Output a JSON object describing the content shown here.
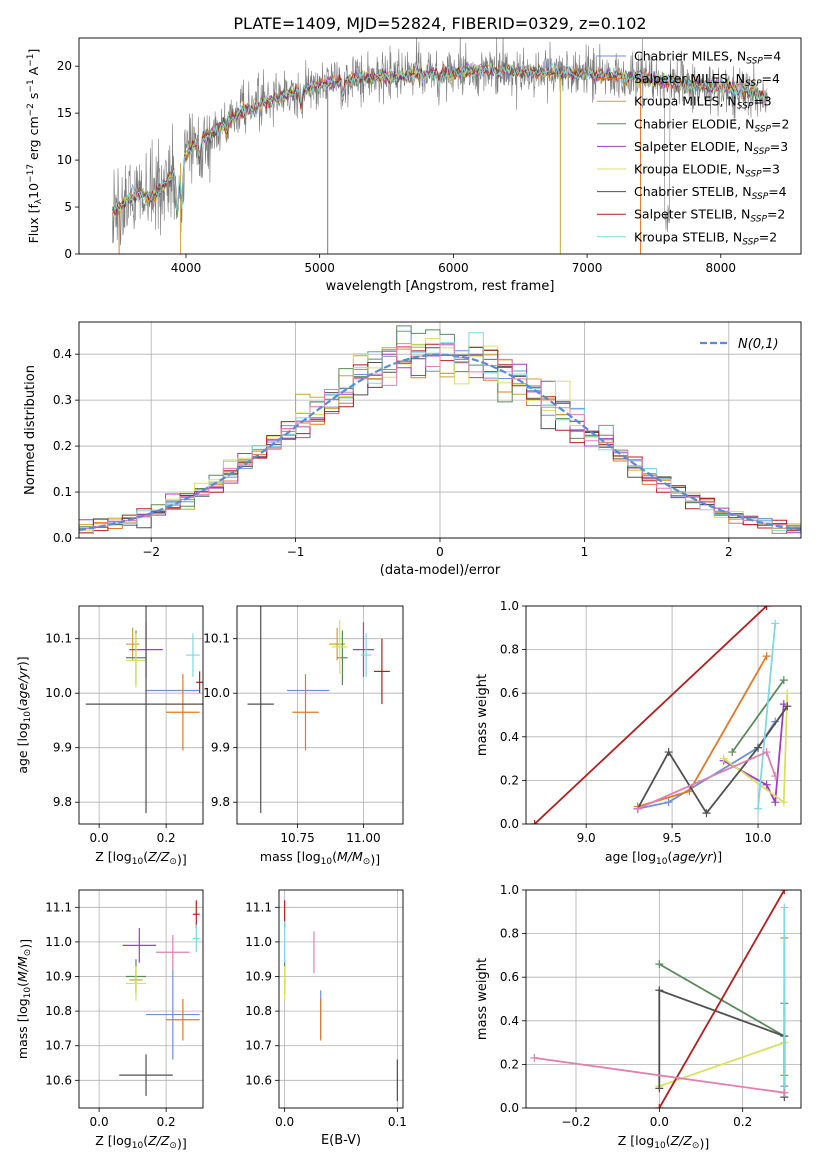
{
  "figure_title": "PLATE=1409, MJD=52824, FIBERID=0329, z=0.102",
  "models": [
    {
      "name": "Chabrier MILES, N",
      "sub": "SSP",
      "suffix": "=4",
      "color": "#6f8fd8"
    },
    {
      "name": "Salpeter MILES, N",
      "sub": "SSP",
      "suffix": "=4",
      "color": "#e07a2a"
    },
    {
      "name": "Kroupa MILES, N",
      "sub": "SSP",
      "suffix": "=3",
      "color": "#c9a23a"
    },
    {
      "name": "Chabrier ELODIE, N",
      "sub": "SSP",
      "suffix": "=2",
      "color": "#5a8a5a"
    },
    {
      "name": "Salpeter ELODIE, N",
      "sub": "SSP",
      "suffix": "=3",
      "color": "#a040c0"
    },
    {
      "name": "Kroupa ELODIE, N",
      "sub": "SSP",
      "suffix": "=3",
      "color": "#d8e060"
    },
    {
      "name": "Chabrier STELIB, N",
      "sub": "SSP",
      "suffix": "=4",
      "color": "#505050"
    },
    {
      "name": "Salpeter STELIB, N",
      "sub": "SSP",
      "suffix": "=2",
      "color": "#b02020"
    },
    {
      "name": "Kroupa STELIB, N",
      "sub": "SSP",
      "suffix": "=2",
      "color": "#80d8e0"
    }
  ],
  "chart_data": [
    {
      "id": "spectrum",
      "type": "line",
      "xlabel": "wavelength [Angstrom, rest frame]",
      "ylabel_parts": [
        "Flux [f",
        "λ",
        "10",
        "−17",
        " erg cm",
        "−2",
        " s",
        "−1",
        " A",
        "−1",
        "]"
      ],
      "xlim": [
        3200,
        8600
      ],
      "ylim": [
        0,
        23
      ],
      "xticks": [
        4000,
        5000,
        6000,
        7000,
        8000
      ],
      "yticks": [
        0,
        5,
        10,
        15,
        20
      ],
      "grid": false,
      "legend": "right",
      "continuum": {
        "x": [
          3450,
          3550,
          3650,
          3750,
          3850,
          3950,
          4050,
          4200,
          4400,
          4600,
          4800,
          5000,
          5200,
          5400,
          5600,
          5800,
          6000,
          6200,
          6400,
          6600,
          6800,
          7000,
          7200,
          7400,
          7600,
          7800,
          8000,
          8200,
          8350
        ],
        "y": [
          4.5,
          5.5,
          6.5,
          6.0,
          7.5,
          9.5,
          11.5,
          13.0,
          15.0,
          16.2,
          17.2,
          18.0,
          18.6,
          18.8,
          19.0,
          19.2,
          19.3,
          19.5,
          19.5,
          19.4,
          19.3,
          19.2,
          19.0,
          18.8,
          18.4,
          18.0,
          17.8,
          17.3,
          16.8
        ]
      }
    },
    {
      "id": "residuals",
      "type": "histogram",
      "xlabel": "(data-model)/error",
      "ylabel": "Normed distribution",
      "xlim": [
        -2.5,
        2.5
      ],
      "ylim": [
        0,
        0.47
      ],
      "xticks": [
        -2,
        -1,
        0,
        1,
        2
      ],
      "yticks": [
        0.0,
        0.1,
        0.2,
        0.3,
        0.4
      ],
      "grid": true,
      "legend": "top-right",
      "reference_label": "N(0,1)",
      "bin_width": 0.1
    },
    {
      "id": "age-vs-Z",
      "type": "errorbar",
      "xlabel": "Z [log10(Z/Z⊙)]",
      "ylabel": "age  [log10(age/yr)]",
      "xlim": [
        -0.06,
        0.31
      ],
      "ylim": [
        9.76,
        10.16
      ],
      "xticks": [
        0.0,
        0.2
      ],
      "yticks": [
        9.8,
        9.9,
        10.0,
        10.1
      ],
      "points": [
        {
          "m": 0,
          "x": 0.22,
          "xe": 0.08,
          "y": 10.005,
          "ye": 0.0
        },
        {
          "m": 1,
          "x": 0.25,
          "xe": 0.05,
          "y": 9.965,
          "ye": 0.07
        },
        {
          "m": 2,
          "x": 0.1,
          "xe": 0.02,
          "y": 10.09,
          "ye": 0.03
        },
        {
          "m": 3,
          "x": 0.11,
          "xe": 0.03,
          "y": 10.065,
          "ye": 0.05
        },
        {
          "m": 4,
          "x": 0.14,
          "xe": 0.05,
          "y": 10.08,
          "ye": 0.05
        },
        {
          "m": 5,
          "x": 0.11,
          "xe": 0.03,
          "y": 10.06,
          "ye": 0.05
        },
        {
          "m": 6,
          "x": 0.14,
          "xe": 0.18,
          "y": 9.98,
          "ye": 0.2
        },
        {
          "m": 7,
          "x": 0.3,
          "xe": 0.01,
          "y": 10.02,
          "ye": 0.02
        },
        {
          "m": 8,
          "x": 0.28,
          "xe": 0.02,
          "y": 10.07,
          "ye": 0.04
        }
      ]
    },
    {
      "id": "age-vs-mass",
      "type": "errorbar",
      "xlabel": "mass [log10(M/M⊙)]",
      "ylabel": "",
      "xlim": [
        10.52,
        11.15
      ],
      "ylim": [
        9.76,
        10.16
      ],
      "xticks": [
        10.75,
        11.0
      ],
      "yticks": [
        9.8,
        9.9,
        10.0,
        10.1
      ],
      "points": [
        {
          "m": 0,
          "x": 10.79,
          "xe": 0.08,
          "y": 10.005,
          "ye": 0.0
        },
        {
          "m": 1,
          "x": 10.78,
          "xe": 0.05,
          "y": 9.965,
          "ye": 0.07
        },
        {
          "m": 2,
          "x": 10.9,
          "xe": 0.03,
          "y": 10.09,
          "ye": 0.03
        },
        {
          "m": 3,
          "x": 10.92,
          "xe": 0.02,
          "y": 10.065,
          "ye": 0.05
        },
        {
          "m": 4,
          "x": 11.0,
          "xe": 0.04,
          "y": 10.08,
          "ye": 0.05
        },
        {
          "m": 5,
          "x": 10.91,
          "xe": 0.03,
          "y": 10.085,
          "ye": 0.05
        },
        {
          "m": 6,
          "x": 10.61,
          "xe": 0.05,
          "y": 9.98,
          "ye": 0.2
        },
        {
          "m": 7,
          "x": 11.07,
          "xe": 0.03,
          "y": 10.04,
          "ye": 0.06
        },
        {
          "m": 8,
          "x": 11.01,
          "xe": 0.02,
          "y": 10.07,
          "ye": 0.04
        }
      ]
    },
    {
      "id": "weight-vs-age",
      "type": "line",
      "xlabel": "age  [log10(age/yr)]",
      "ylabel": "mass weight",
      "xlim": [
        8.65,
        10.25
      ],
      "ylim": [
        0,
        1
      ],
      "xticks": [
        9.0,
        9.5,
        10.0
      ],
      "yticks": [
        0.0,
        0.2,
        0.4,
        0.6,
        0.8,
        1.0
      ],
      "series": [
        {
          "m": 0,
          "x": [
            9.3,
            9.48,
            10.0,
            10.1
          ],
          "y": [
            0.07,
            0.1,
            0.35,
            0.47
          ]
        },
        {
          "m": 1,
          "x": [
            9.3,
            9.6,
            10.05
          ],
          "y": [
            0.08,
            0.15,
            0.77
          ]
        },
        {
          "m": 3,
          "x": [
            9.85,
            10.15
          ],
          "y": [
            0.33,
            0.66
          ]
        },
        {
          "m": 4,
          "x": [
            9.8,
            10.05,
            10.1,
            10.15
          ],
          "y": [
            0.29,
            0.18,
            0.1,
            0.55
          ]
        },
        {
          "m": 5,
          "x": [
            9.8,
            10.15,
            10.17
          ],
          "y": [
            0.3,
            0.1,
            0.6
          ]
        },
        {
          "m": 6,
          "x": [
            9.3,
            9.48,
            9.7,
            10.0,
            10.17
          ],
          "y": [
            0.07,
            0.33,
            0.05,
            0.35,
            0.54
          ]
        },
        {
          "m": 7,
          "x": [
            8.7,
            10.05
          ],
          "y": [
            0.0,
            1.0
          ]
        },
        {
          "m": 8,
          "x": [
            10.0,
            10.1
          ],
          "y": [
            0.07,
            0.92
          ]
        },
        {
          "m": 9,
          "x": [
            9.3,
            10.05,
            10.1
          ],
          "y": [
            0.07,
            0.33,
            0.22
          ]
        }
      ]
    },
    {
      "id": "mass-vs-Z",
      "type": "errorbar",
      "xlabel": "Z [log10(Z/Z⊙)]",
      "ylabel": "mass [log10(M/M⊙)]",
      "xlim": [
        -0.06,
        0.31
      ],
      "ylim": [
        10.52,
        11.15
      ],
      "xticks": [
        0.0,
        0.2
      ],
      "yticks": [
        10.6,
        10.7,
        10.8,
        10.9,
        11.0,
        11.1
      ],
      "points": [
        {
          "m": 0,
          "x": 0.22,
          "xe": 0.08,
          "y": 10.79,
          "ye": 0.13
        },
        {
          "m": 1,
          "x": 0.25,
          "xe": 0.05,
          "y": 10.775,
          "ye": 0.06
        },
        {
          "m": 2,
          "x": 0.11,
          "xe": 0.02,
          "y": 10.89,
          "ye": 0.03
        },
        {
          "m": 3,
          "x": 0.11,
          "xe": 0.03,
          "y": 10.9,
          "ye": 0.05
        },
        {
          "m": 4,
          "x": 0.12,
          "xe": 0.05,
          "y": 10.99,
          "ye": 0.05
        },
        {
          "m": 5,
          "x": 0.11,
          "xe": 0.03,
          "y": 10.88,
          "ye": 0.05
        },
        {
          "m": 6,
          "x": 0.14,
          "xe": 0.08,
          "y": 10.615,
          "ye": 0.06
        },
        {
          "m": 7,
          "x": 0.29,
          "xe": 0.01,
          "y": 11.08,
          "ye": 0.04
        },
        {
          "m": 8,
          "x": 0.29,
          "xe": 0.01,
          "y": 11.01,
          "ye": 0.04
        },
        {
          "m": 9,
          "x": 0.22,
          "xe": 0.05,
          "y": 10.97,
          "ye": 0.05
        }
      ]
    },
    {
      "id": "mass-vs-EBV",
      "type": "errorbar",
      "xlabel": "E(B-V)",
      "ylabel": "",
      "xlim": [
        -0.005,
        0.105
      ],
      "ylim": [
        10.52,
        11.15
      ],
      "xticks": [
        0.0,
        0.1
      ],
      "yticks": [
        10.6,
        10.7,
        10.8,
        10.9,
        11.0,
        11.1
      ],
      "points": [
        {
          "m": 0,
          "x": 0.032,
          "xe": 0,
          "y": 10.79,
          "ye": 0.07
        },
        {
          "m": 1,
          "x": 0.032,
          "xe": 0,
          "y": 10.775,
          "ye": 0.06
        },
        {
          "m": 3,
          "x": 0.0,
          "xe": 0,
          "y": 10.9,
          "ye": 0.05
        },
        {
          "m": 5,
          "x": 0.0,
          "xe": 0,
          "y": 10.88,
          "ye": 0.05
        },
        {
          "m": 6,
          "x": 0.1,
          "xe": 0,
          "y": 10.6,
          "ye": 0.06
        },
        {
          "m": 7,
          "x": 0.0,
          "xe": 0,
          "y": 11.08,
          "ye": 0.04
        },
        {
          "m": 8,
          "x": 0.0,
          "xe": 0,
          "y": 11.0,
          "ye": 0.06
        },
        {
          "m": 9,
          "x": 0.026,
          "xe": 0,
          "y": 10.97,
          "ye": 0.06
        }
      ]
    },
    {
      "id": "weight-vs-Z",
      "type": "line",
      "xlabel": "Z [log10(Z/Z⊙)]",
      "ylabel": "mass weight",
      "xlim": [
        -0.32,
        0.34
      ],
      "ylim": [
        0,
        1
      ],
      "xticks": [
        -0.2,
        0.0,
        0.2
      ],
      "yticks": [
        0.0,
        0.2,
        0.4,
        0.6,
        0.8,
        1.0
      ],
      "series": [
        {
          "m": 0,
          "x": [
            0.3,
            0.3
          ],
          "y": [
            0.1,
            0.48
          ]
        },
        {
          "m": 1,
          "x": [
            0.3,
            0.3
          ],
          "y": [
            0.15,
            0.78
          ]
        },
        {
          "m": 3,
          "x": [
            0.0,
            0.3
          ],
          "y": [
            0.66,
            0.33
          ]
        },
        {
          "m": 5,
          "x": [
            0.0,
            0.3
          ],
          "y": [
            0.1,
            0.3
          ]
        },
        {
          "m": 6,
          "x": [
            0.0,
            0.0,
            0.3,
            0.3
          ],
          "y": [
            0.09,
            0.54,
            0.33,
            0.05
          ]
        },
        {
          "m": 7,
          "x": [
            0.0,
            0.3
          ],
          "y": [
            0.0,
            1.0
          ]
        },
        {
          "m": 8,
          "x": [
            0.3,
            0.3
          ],
          "y": [
            0.07,
            0.92
          ]
        },
        {
          "m": 9,
          "x": [
            -0.3,
            0.3
          ],
          "y": [
            0.23,
            0.07
          ]
        }
      ]
    }
  ]
}
